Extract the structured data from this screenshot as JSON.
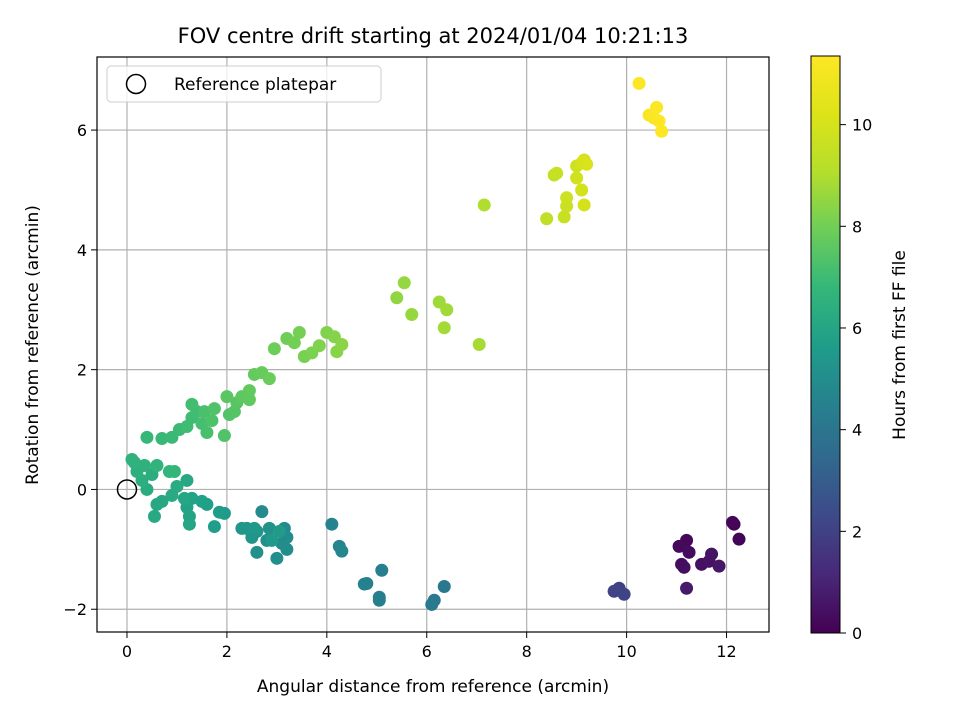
{
  "chart_data": {
    "type": "scatter",
    "title": "FOV centre drift starting at 2024/01/04 10:21:13",
    "xlabel": "Angular distance from reference (arcmin)",
    "ylabel": "Rotation from reference (arcmin)",
    "xlim": [
      -0.6,
      12.85
    ],
    "ylim": [
      -2.38,
      7.22
    ],
    "xticks": [
      "0",
      "2",
      "4",
      "6",
      "8",
      "10",
      "12"
    ],
    "yticks": [
      "−2",
      "0",
      "2",
      "4",
      "6"
    ],
    "grid": true,
    "legend": {
      "position": "top-left",
      "entries": [
        "Reference platepar"
      ]
    },
    "reference_point": {
      "x": 0,
      "y": 0,
      "marker": "open-circle"
    },
    "colorbar": {
      "label": "Hours from first FF file",
      "colormap": "viridis",
      "range": [
        0,
        11.35
      ],
      "ticks": [
        "0",
        "2",
        "4",
        "6",
        "8",
        "10"
      ]
    },
    "series": [
      {
        "points": [
          [
            12.15,
            -0.58,
            0.05
          ],
          [
            12.25,
            -0.83,
            0.1
          ],
          [
            12.12,
            -0.55,
            0.15
          ],
          [
            11.2,
            -0.85,
            0.2
          ],
          [
            11.05,
            -0.95,
            0.25
          ],
          [
            11.25,
            -1.05,
            0.3
          ],
          [
            11.1,
            -1.25,
            0.35
          ],
          [
            11.15,
            -1.3,
            0.4
          ],
          [
            11.5,
            -1.25,
            0.45
          ],
          [
            11.65,
            -1.2,
            0.5
          ],
          [
            11.7,
            -1.08,
            0.55
          ],
          [
            11.85,
            -1.28,
            0.6
          ],
          [
            11.2,
            -1.65,
            0.7
          ],
          [
            9.85,
            -1.65,
            2.0
          ],
          [
            9.75,
            -1.7,
            2.05
          ],
          [
            9.95,
            -1.75,
            2.1
          ],
          [
            6.35,
            -1.62,
            4.1
          ],
          [
            6.15,
            -1.85,
            4.15
          ],
          [
            6.1,
            -1.92,
            4.2
          ],
          [
            5.1,
            -1.35,
            4.3
          ],
          [
            5.05,
            -1.8,
            4.35
          ],
          [
            5.05,
            -1.85,
            4.4
          ],
          [
            4.8,
            -1.57,
            4.45
          ],
          [
            4.75,
            -1.58,
            4.5
          ],
          [
            4.1,
            -0.58,
            4.6
          ],
          [
            4.25,
            -0.95,
            4.65
          ],
          [
            4.3,
            -1.03,
            4.7
          ],
          [
            2.7,
            -0.37,
            4.85
          ],
          [
            3.15,
            -0.65,
            4.9
          ],
          [
            3.2,
            -0.8,
            4.95
          ],
          [
            3.1,
            -0.9,
            5.0
          ],
          [
            3.2,
            -1.0,
            5.0
          ],
          [
            3.0,
            -1.15,
            5.05
          ],
          [
            2.6,
            -1.05,
            5.1
          ],
          [
            2.8,
            -0.85,
            5.15
          ],
          [
            2.85,
            -0.65,
            5.2
          ],
          [
            2.6,
            -0.7,
            5.25
          ],
          [
            2.5,
            -0.8,
            5.3
          ],
          [
            2.4,
            -0.65,
            5.35
          ],
          [
            2.3,
            -0.65,
            5.4
          ],
          [
            2.55,
            -0.65,
            5.45
          ],
          [
            2.9,
            -0.85,
            5.5
          ],
          [
            3.05,
            -0.7,
            5.55
          ],
          [
            1.95,
            -0.4,
            5.6
          ],
          [
            1.85,
            -0.38,
            5.65
          ],
          [
            1.75,
            -0.62,
            5.7
          ],
          [
            1.6,
            -0.25,
            5.75
          ],
          [
            1.5,
            -0.2,
            5.8
          ],
          [
            1.3,
            -0.15,
            5.85
          ],
          [
            1.2,
            -0.3,
            5.9
          ],
          [
            1.25,
            -0.45,
            5.95
          ],
          [
            1.25,
            -0.58,
            6.0
          ],
          [
            1.15,
            -0.15,
            6.05
          ],
          [
            1.2,
            0.15,
            6.1
          ],
          [
            0.6,
            -0.25,
            6.1
          ],
          [
            0.55,
            -0.45,
            6.12
          ],
          [
            0.7,
            -0.2,
            6.15
          ],
          [
            0.9,
            -0.1,
            6.2
          ],
          [
            1.0,
            0.05,
            6.25
          ],
          [
            0.4,
            0.0,
            6.3
          ],
          [
            0.5,
            0.25,
            6.35
          ],
          [
            0.3,
            0.15,
            6.4
          ],
          [
            0.2,
            0.3,
            6.45
          ],
          [
            0.35,
            0.4,
            6.5
          ],
          [
            0.15,
            0.45,
            6.55
          ],
          [
            0.1,
            0.5,
            6.6
          ],
          [
            0.6,
            0.4,
            6.65
          ],
          [
            0.85,
            0.3,
            6.7
          ],
          [
            0.95,
            0.3,
            6.75
          ],
          [
            0.4,
            0.87,
            6.8
          ],
          [
            0.7,
            0.85,
            6.85
          ],
          [
            0.9,
            0.87,
            6.9
          ],
          [
            1.05,
            1.0,
            6.95
          ],
          [
            1.2,
            1.05,
            7.0
          ],
          [
            1.3,
            1.2,
            7.0
          ],
          [
            1.4,
            1.3,
            7.05
          ],
          [
            1.3,
            1.42,
            7.1
          ],
          [
            1.5,
            1.1,
            7.15
          ],
          [
            1.6,
            0.95,
            7.2
          ],
          [
            1.55,
            1.3,
            7.25
          ],
          [
            1.7,
            1.15,
            7.3
          ],
          [
            1.75,
            1.35,
            7.35
          ],
          [
            1.95,
            0.9,
            7.35
          ],
          [
            2.05,
            1.25,
            7.4
          ],
          [
            2.15,
            1.3,
            7.45
          ],
          [
            2.2,
            1.45,
            7.5
          ],
          [
            2.0,
            1.55,
            7.55
          ],
          [
            2.3,
            1.55,
            7.6
          ],
          [
            2.45,
            1.5,
            7.65
          ],
          [
            2.45,
            1.65,
            7.7
          ],
          [
            2.55,
            1.92,
            7.75
          ],
          [
            2.7,
            1.95,
            7.8
          ],
          [
            2.85,
            1.85,
            7.85
          ],
          [
            2.95,
            2.35,
            7.9
          ],
          [
            3.2,
            2.52,
            7.95
          ],
          [
            3.35,
            2.45,
            8.0
          ],
          [
            3.45,
            2.62,
            8.05
          ],
          [
            3.55,
            2.22,
            8.1
          ],
          [
            3.7,
            2.28,
            8.15
          ],
          [
            3.85,
            2.4,
            8.2
          ],
          [
            4.0,
            2.62,
            8.25
          ],
          [
            4.15,
            2.55,
            8.3
          ],
          [
            4.2,
            2.3,
            8.35
          ],
          [
            4.3,
            2.42,
            8.4
          ],
          [
            5.4,
            3.2,
            8.5
          ],
          [
            5.55,
            3.45,
            8.55
          ],
          [
            5.7,
            2.92,
            8.6
          ],
          [
            6.25,
            3.13,
            8.7
          ],
          [
            6.4,
            3.0,
            8.75
          ],
          [
            6.35,
            2.7,
            8.8
          ],
          [
            7.05,
            2.42,
            8.85
          ],
          [
            7.15,
            4.75,
            9.0
          ],
          [
            8.4,
            4.52,
            9.4
          ],
          [
            8.55,
            5.25,
            9.5
          ],
          [
            8.6,
            5.28,
            9.55
          ],
          [
            8.75,
            4.55,
            9.6
          ],
          [
            8.8,
            4.73,
            9.65
          ],
          [
            8.8,
            4.87,
            9.7
          ],
          [
            9.0,
            5.4,
            9.8
          ],
          [
            9.0,
            5.2,
            9.85
          ],
          [
            9.1,
            5.0,
            9.9
          ],
          [
            9.15,
            4.75,
            9.95
          ],
          [
            9.1,
            5.45,
            10.0
          ],
          [
            9.15,
            5.5,
            10.05
          ],
          [
            9.2,
            5.43,
            10.1
          ],
          [
            10.25,
            6.78,
            11.3
          ],
          [
            10.45,
            6.25,
            11.2
          ],
          [
            10.55,
            6.2,
            11.25
          ],
          [
            10.6,
            6.38,
            11.3
          ],
          [
            10.65,
            6.15,
            11.35
          ],
          [
            10.7,
            5.98,
            11.3
          ]
        ]
      }
    ]
  }
}
